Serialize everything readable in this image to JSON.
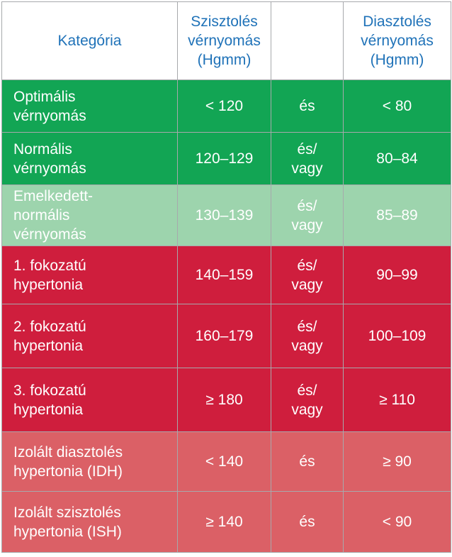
{
  "header": {
    "category": "Kategória",
    "systolic": "Szisztolés\nvérnyomás\n(Hgmm)",
    "connector": "",
    "diastolic": "Diasztolés\nvérnyomás\n(Hgmm)"
  },
  "rows": [
    {
      "category": "Optimális\nvérnyomás",
      "systolic": "< 120",
      "connector": "és",
      "diastolic": "< 80",
      "color": "#12a554"
    },
    {
      "category": "Normális\nvérnyomás",
      "systolic": "120–129",
      "connector": "és/\nvagy",
      "diastolic": "80–84",
      "color": "#12a554"
    },
    {
      "category": "Emelkedett-\nnormális\nvérnyomás",
      "systolic": "130–139",
      "connector": "és/\nvagy",
      "diastolic": "85–89",
      "color": "#9dd4ad"
    },
    {
      "category": "1. fokozatú\nhypertonia",
      "systolic": "140–159",
      "connector": "és/\nvagy",
      "diastolic": "90–99",
      "color": "#cf1e3d"
    },
    {
      "category": "2. fokozatú\nhypertonia",
      "systolic": "160–179",
      "connector": "és/\nvagy",
      "diastolic": "100–109",
      "color": "#cf1e3d"
    },
    {
      "category": "3. fokozatú\nhypertonia",
      "systolic": "≥ 180",
      "connector": "és/\nvagy",
      "diastolic": "≥ 110",
      "color": "#cf1e3d"
    },
    {
      "category": "Izolált diasztolés\nhypertonia (IDH)",
      "systolic": "< 140",
      "connector": "és",
      "diastolic": "≥ 90",
      "color": "#db6066"
    },
    {
      "category": "Izolált szisztolés\nhypertonia (ISH)",
      "systolic": "≥ 140",
      "connector": "és",
      "diastolic": "< 90",
      "color": "#db6066"
    }
  ]
}
